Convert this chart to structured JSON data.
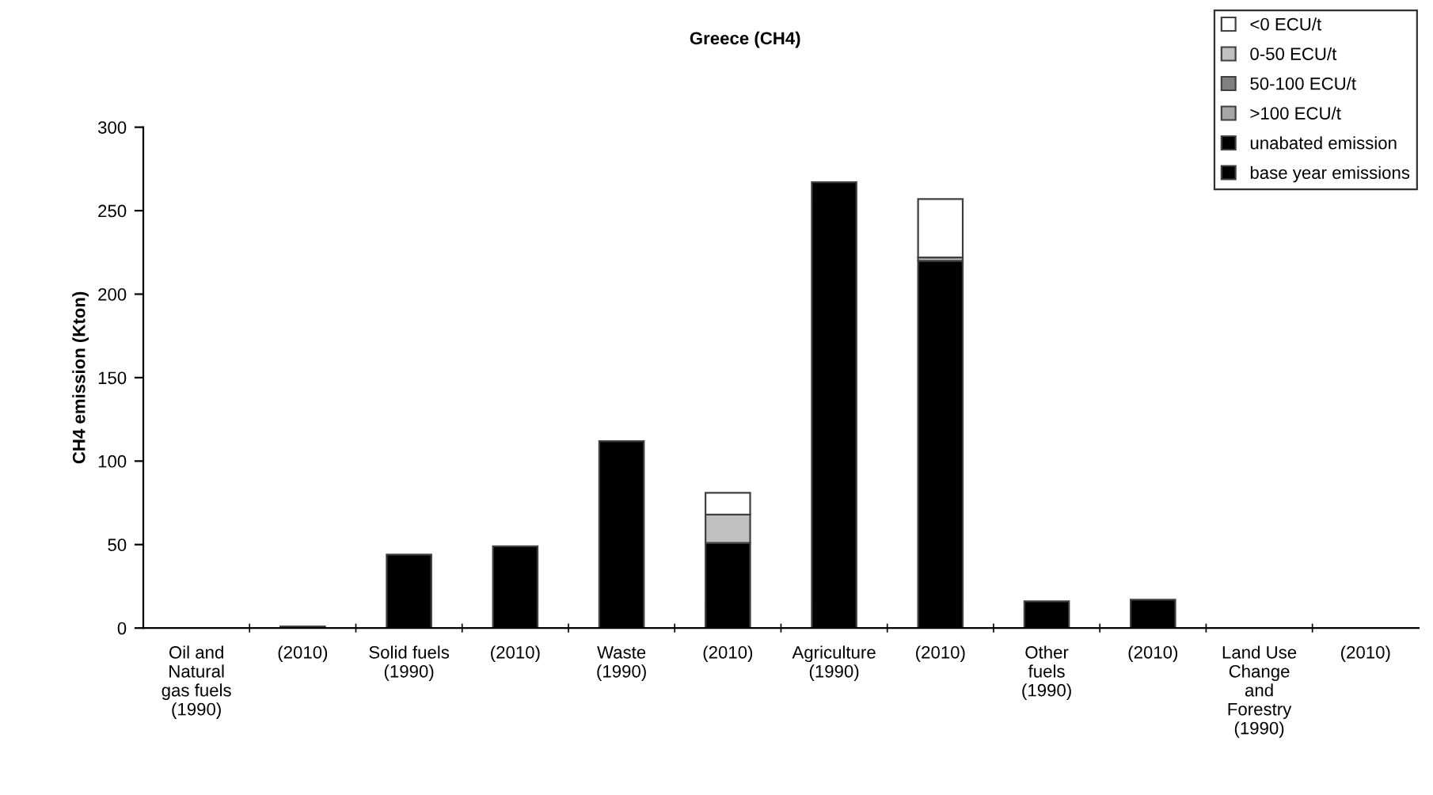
{
  "chart_data": {
    "type": "bar",
    "title": "Greece (CH4)",
    "ylabel": "CH4 emission (Kton)",
    "stacked": true,
    "categories": [
      "Oil and\nNatural\ngas fuels\n(1990)",
      "(2010)",
      "Solid fuels\n(1990)",
      "(2010)",
      "Waste\n(1990)",
      "(2010)",
      "Agriculture\n(1990)",
      "(2010)",
      "Other\nfuels\n(1990)",
      "(2010)",
      "Land Use\nChange\nand\nForestry\n(1990)",
      "(2010)"
    ],
    "series": [
      {
        "name": "base year emissions",
        "color": "#000000",
        "values": [
          null,
          null,
          44,
          null,
          112,
          null,
          267,
          null,
          16,
          null,
          null,
          null
        ]
      },
      {
        "name": "unabated emission",
        "color": "#000000",
        "values": [
          null,
          1,
          null,
          49,
          null,
          51,
          null,
          220,
          null,
          17,
          null,
          null
        ]
      },
      {
        "name": ">100 ECU/t",
        "color": "#a6a6a6",
        "values": [
          null,
          null,
          null,
          null,
          null,
          null,
          null,
          null,
          null,
          null,
          null,
          null
        ]
      },
      {
        "name": "50-100 ECU/t",
        "color": "#808080",
        "values": [
          null,
          null,
          null,
          null,
          null,
          null,
          null,
          null,
          null,
          null,
          null,
          null
        ]
      },
      {
        "name": "0-50 ECU/t",
        "color": "#c0c0c0",
        "values": [
          null,
          null,
          null,
          null,
          null,
          17,
          null,
          2,
          null,
          null,
          null,
          null
        ]
      },
      {
        "name": "<0 ECU/t",
        "color": "#ffffff",
        "values": [
          null,
          null,
          null,
          null,
          null,
          13,
          null,
          35,
          null,
          null,
          null,
          null
        ]
      }
    ],
    "ylim": [
      0,
      300
    ],
    "yticks": [
      0,
      50,
      100,
      150,
      200,
      250,
      300
    ],
    "grid": false,
    "legend": "top right"
  }
}
